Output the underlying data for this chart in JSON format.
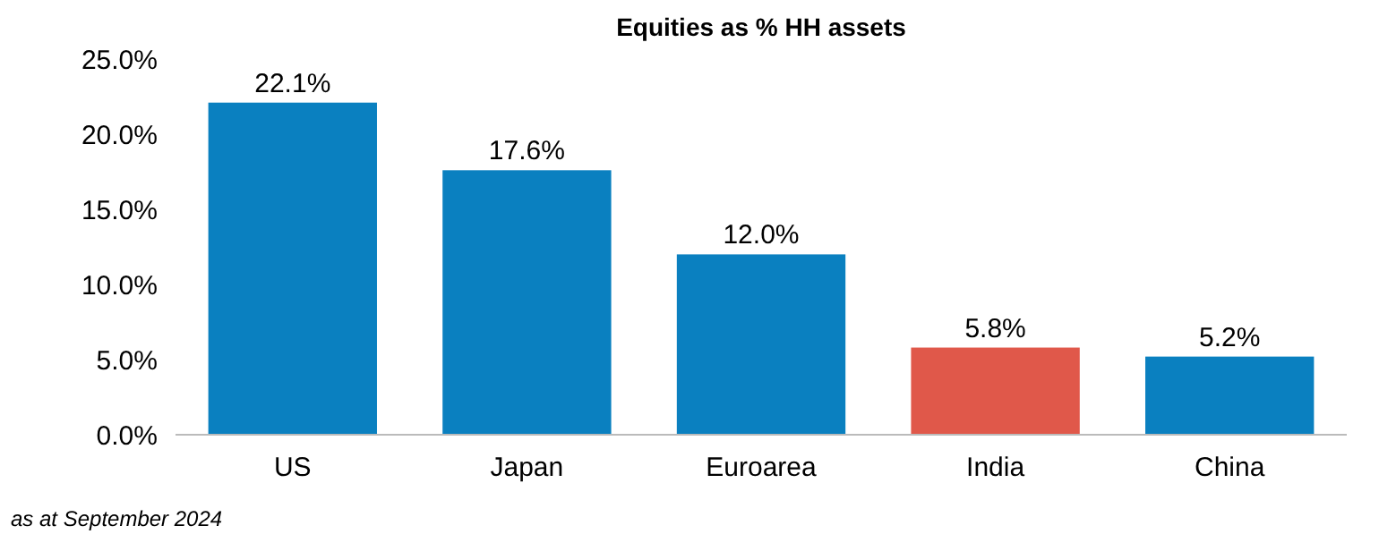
{
  "chart_data": {
    "type": "bar",
    "title": "Equities as % HH assets",
    "categories": [
      "US",
      "Japan",
      "Euroarea",
      "India",
      "China"
    ],
    "values": [
      22.1,
      17.6,
      12.0,
      5.8,
      5.2
    ],
    "colors": [
      "#0a80c0",
      "#0a80c0",
      "#0a80c0",
      "#e0584a",
      "#0a80c0"
    ],
    "value_labels": [
      "22.1%",
      "17.6%",
      "12.0%",
      "5.8%",
      "5.2%"
    ],
    "ylim": [
      0,
      25
    ],
    "yticks": [
      {
        "value": 0,
        "label": "0.0%"
      },
      {
        "value": 5,
        "label": "5.0%"
      },
      {
        "value": 10,
        "label": "10.0%"
      },
      {
        "value": 15,
        "label": "15.0%"
      },
      {
        "value": 20,
        "label": "20.0%"
      },
      {
        "value": 25,
        "label": "25.0%"
      }
    ],
    "grid": false,
    "annotations": [
      "as at September 2024"
    ]
  }
}
